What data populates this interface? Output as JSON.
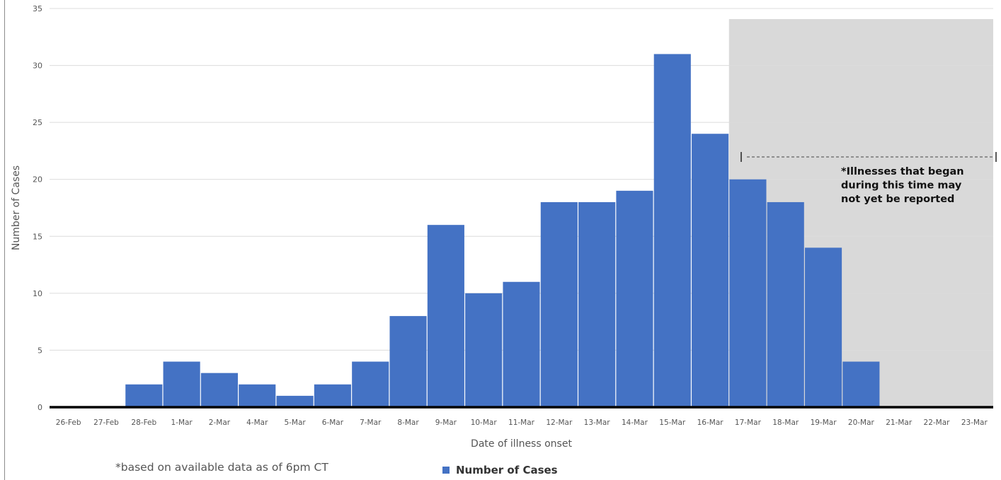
{
  "colors": {
    "bar": "#4472c4",
    "shade": "#d9d9d9",
    "grid": "#dcdcdc",
    "baseline": "#000000"
  },
  "annotation": {
    "lines": [
      "*Illnesses that began",
      "during this time may",
      "not yet be reported"
    ]
  },
  "footnote": "*based on available data as of 6pm CT",
  "legend": {
    "label": "Number of Cases",
    "position": "bottom"
  },
  "chart_data": {
    "type": "bar",
    "categories": [
      "26-Feb",
      "27-Feb",
      "28-Feb",
      "1-Mar",
      "2-Mar",
      "4-Mar",
      "5-Mar",
      "6-Mar",
      "7-Mar",
      "8-Mar",
      "9-Mar",
      "10-Mar",
      "11-Mar",
      "12-Mar",
      "13-Mar",
      "14-Mar",
      "15-Mar",
      "16-Mar",
      "17-Mar",
      "18-Mar",
      "19-Mar",
      "20-Mar",
      "21-Mar",
      "22-Mar",
      "23-Mar"
    ],
    "series": [
      {
        "name": "Number of Cases",
        "values": [
          0,
          0,
          2,
          4,
          3,
          2,
          1,
          2,
          4,
          8,
          16,
          10,
          11,
          18,
          18,
          19,
          31,
          24,
          20,
          18,
          14,
          4,
          0,
          0,
          0
        ]
      }
    ],
    "xlabel": "Date of illness onset",
    "ylabel": "Number of Cases",
    "ylim": [
      0,
      35
    ],
    "yticks": [
      0,
      5,
      10,
      15,
      20,
      25,
      30,
      35
    ],
    "grid": true,
    "shaded_range": [
      "17-Mar",
      "23-Mar"
    ]
  }
}
